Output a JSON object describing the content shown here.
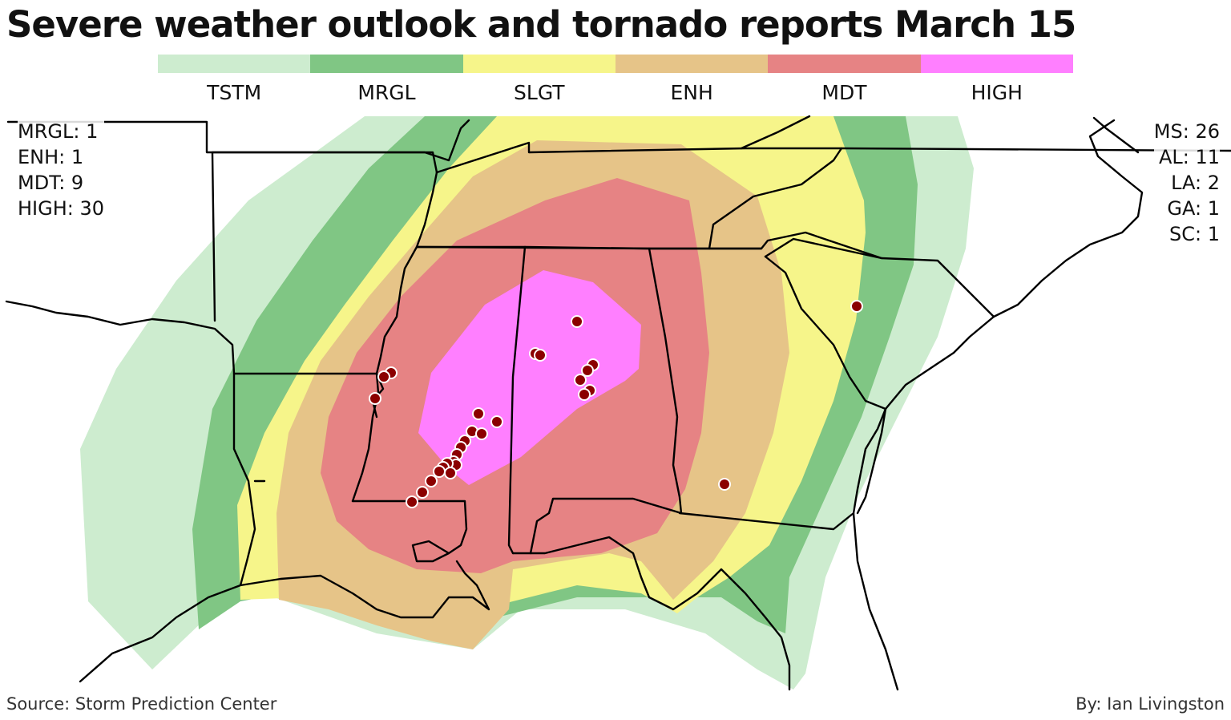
{
  "title": "Severe weather outlook and tornado reports March 15",
  "legend": [
    {
      "label": "TSTM",
      "color": "#cdeccf"
    },
    {
      "label": "MRGL",
      "color": "#80c684"
    },
    {
      "label": "SLGT",
      "color": "#f6f58a"
    },
    {
      "label": "ENH",
      "color": "#e6c488"
    },
    {
      "label": "MDT",
      "color": "#e68384"
    },
    {
      "label": "HIGH",
      "color": "#ff7fff"
    }
  ],
  "category_counts": [
    {
      "text": "MRGL: 1"
    },
    {
      "text": "ENH: 1"
    },
    {
      "text": "MDT: 9"
    },
    {
      "text": "HIGH: 30"
    }
  ],
  "state_counts": [
    {
      "text": "MS: 26"
    },
    {
      "text": "AL: 11"
    },
    {
      "text": "LA: 2"
    },
    {
      "text": "GA: 1"
    },
    {
      "text": "SC: 1"
    }
  ],
  "report_color": "#8b0000",
  "source": "Source: Storm Prediction Center",
  "byline": "By: Ian Livingston"
}
